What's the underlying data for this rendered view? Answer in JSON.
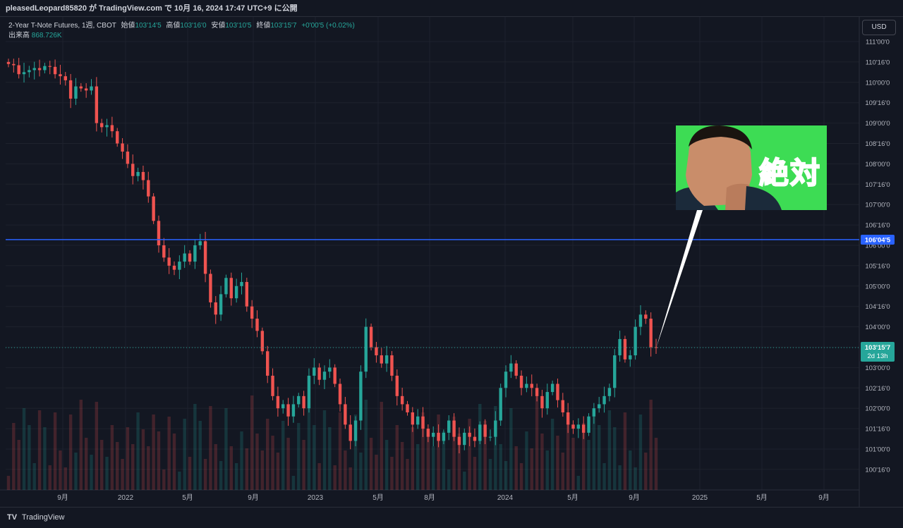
{
  "header": {
    "text": "pleasedLeopard85820 が TradingView.com で 10月 16, 2024 17:47 UTC+9 に公開"
  },
  "legend": {
    "symbol": "2-Year T-Note Futures, 1週, CBOT",
    "open_label": "始値",
    "open": "103'14'5",
    "high_label": "高値",
    "high": "103'16'0",
    "low_label": "安値",
    "low": "103'10'5",
    "close_label": "終値",
    "close": "103'15'7",
    "change": "+0'00'5 (+0.02%)",
    "volume_label": "出来高",
    "volume": "868.726K"
  },
  "currency_button": "USD",
  "hline_label": "106'04'5",
  "last_price_label": "103'15'7",
  "countdown_label": "2d 13h",
  "thumbnail_text": "絶対",
  "footer": {
    "brand": "TradingView"
  },
  "colors": {
    "up": "#26a69a",
    "down": "#ef5350",
    "hline": "#2962ff",
    "background": "#131722"
  },
  "chart_data": {
    "type": "candlestick",
    "y_ticks": [
      "111'00'0",
      "110'16'0",
      "110'00'0",
      "109'16'0",
      "109'00'0",
      "108'16'0",
      "108'00'0",
      "107'16'0",
      "107'00'0",
      "106'16'0",
      "106'00'0",
      "105'16'0",
      "105'00'0",
      "104'16'0",
      "104'00'0",
      "103'16'0",
      "103'00'0",
      "102'16'0",
      "102'00'0",
      "101'16'0",
      "101'00'0",
      "100'16'0"
    ],
    "x_ticks": [
      "9月",
      "2022",
      "5月",
      "9月",
      "2023",
      "5月",
      "8月",
      "2024",
      "5月",
      "9月",
      "2025",
      "5月",
      "9月"
    ],
    "ylim": [
      100.25,
      111.0
    ],
    "horizontal_line": 106.14,
    "last_price": 103.49,
    "closes": [
      110.45,
      110.42,
      110.2,
      110.25,
      110.3,
      110.35,
      110.3,
      110.4,
      110.38,
      110.2,
      110.15,
      110.05,
      109.6,
      109.9,
      109.85,
      109.8,
      109.9,
      109.0,
      108.9,
      108.95,
      108.8,
      108.5,
      108.3,
      108.0,
      107.7,
      107.8,
      107.6,
      107.2,
      106.6,
      106.0,
      105.7,
      105.5,
      105.4,
      105.6,
      105.8,
      105.6,
      106.0,
      106.1,
      105.3,
      104.6,
      104.3,
      104.8,
      105.2,
      104.7,
      105.0,
      105.1,
      104.5,
      104.2,
      103.9,
      103.4,
      102.8,
      102.3,
      102.0,
      102.1,
      101.8,
      102.1,
      102.3,
      102.0,
      102.8,
      103.0,
      102.7,
      102.9,
      103.0,
      102.6,
      102.1,
      101.6,
      101.2,
      101.7,
      102.9,
      104.0,
      103.5,
      103.3,
      103.1,
      103.3,
      102.8,
      102.3,
      102.1,
      101.9,
      101.6,
      101.8,
      101.5,
      101.3,
      101.4,
      101.2,
      101.4,
      101.7,
      101.3,
      101.1,
      101.4,
      101.3,
      101.2,
      101.6,
      101.3,
      101.3,
      101.7,
      102.5,
      102.9,
      103.1,
      102.8,
      102.5,
      102.6,
      102.5,
      102.3,
      102.0,
      102.4,
      102.6,
      102.2,
      101.9,
      101.6,
      101.5,
      101.6,
      101.4,
      101.8,
      102.0,
      102.1,
      102.3,
      102.5,
      103.3,
      103.7,
      103.2,
      103.3,
      104.0,
      104.3,
      104.2,
      103.5,
      103.49
    ]
  }
}
